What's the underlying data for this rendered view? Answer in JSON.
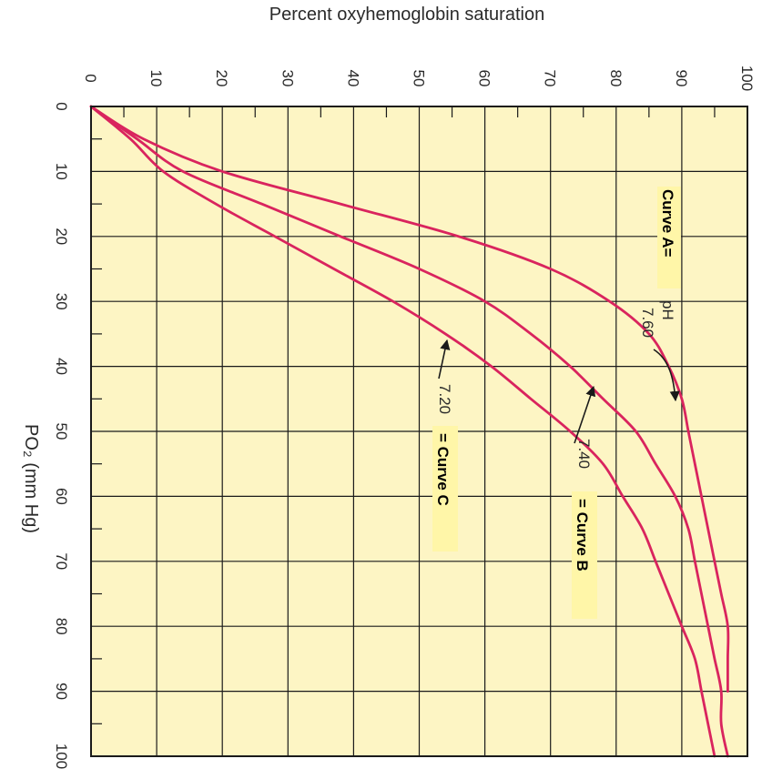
{
  "chart_data": {
    "type": "line",
    "orientation": "rotated-90-clockwise",
    "title": "",
    "xlabel": "PO₂ (mm Hg)",
    "ylabel": "Percent oxyhemoglobin saturation",
    "xlim": [
      0,
      100
    ],
    "ylim": [
      0,
      100
    ],
    "x_ticks": [
      0,
      10,
      20,
      30,
      40,
      50,
      60,
      70,
      80,
      90,
      100
    ],
    "y_ticks": [
      0,
      10,
      20,
      30,
      40,
      50,
      60,
      70,
      80,
      90,
      100
    ],
    "grid": true,
    "colors": {
      "background": "#fdf5c4",
      "grid": "#1a1a1a",
      "curve": "#d9245e",
      "label_bg": "#fff6a8"
    },
    "series": [
      {
        "name": "Curve A",
        "x": [
          0,
          5,
          10,
          15,
          20,
          25,
          30,
          35,
          40,
          45,
          50,
          55,
          60,
          65,
          70,
          75,
          80,
          85,
          90
        ],
        "y": [
          0,
          8,
          20,
          38,
          56,
          70,
          79,
          85,
          88,
          90,
          91,
          92,
          93,
          94,
          95,
          96,
          97,
          97,
          97
        ]
      },
      {
        "name": "Curve B",
        "x": [
          0,
          5,
          10,
          15,
          20,
          25,
          30,
          35,
          40,
          45,
          50,
          55,
          60,
          65,
          70,
          75,
          80,
          85,
          90,
          95,
          100
        ],
        "y": [
          0,
          7,
          14,
          26,
          38,
          50,
          60,
          67,
          73,
          78,
          83,
          86,
          89,
          91,
          92,
          93,
          94,
          95,
          96,
          96,
          97
        ]
      },
      {
        "name": "Curve C",
        "x": [
          0,
          5,
          10,
          15,
          20,
          25,
          30,
          35,
          40,
          45,
          50,
          55,
          60,
          65,
          70,
          75,
          80,
          85,
          90,
          95,
          100
        ],
        "y": [
          0,
          6,
          11,
          19,
          28,
          37,
          46,
          54,
          61,
          67,
          73,
          78,
          81,
          84,
          86,
          88,
          90,
          92,
          93,
          94,
          95
        ]
      }
    ],
    "annotations": {
      "curve_a_label": "Curve A=",
      "ph_label": "pH",
      "ph_a": "7.60",
      "ph_b": "7.40",
      "curve_b_label": "= Curve B",
      "ph_c": "7.20",
      "curve_c_label": "= Curve C"
    }
  }
}
